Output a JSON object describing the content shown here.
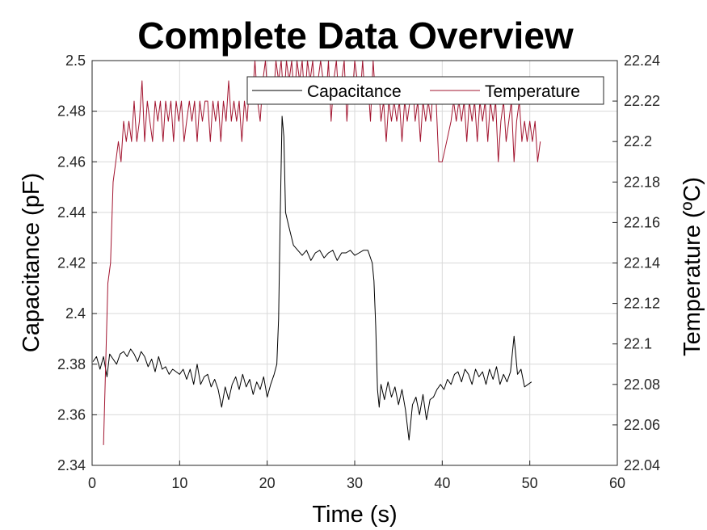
{
  "chart_data": {
    "type": "line",
    "title": "Complete Data Overview",
    "xlabel": "Time (s)",
    "ylabel_left": "Capacitance (pF)",
    "ylabel_right": "Temperature (ºC)",
    "xlim": [
      0,
      60
    ],
    "ylim_left": [
      2.34,
      2.5
    ],
    "ylim_right": [
      22.04,
      22.24
    ],
    "x_ticks": [
      "0",
      "10",
      "20",
      "30",
      "40",
      "50",
      "60"
    ],
    "y_left_ticks": [
      "2.34",
      "2.36",
      "2.38",
      "2.4",
      "2.42",
      "2.44",
      "2.46",
      "2.48",
      "2.5"
    ],
    "y_right_ticks": [
      "22.04",
      "22.06",
      "22.08",
      "22.1",
      "22.12",
      "22.14",
      "22.16",
      "22.18",
      "22.2",
      "22.22",
      "22.24"
    ],
    "grid": true,
    "legend": "top-right",
    "series": [
      {
        "name": "Capacitance",
        "axis": "left",
        "color": "#000000",
        "points": [
          [
            0.1,
            2.381
          ],
          [
            0.5,
            2.383
          ],
          [
            0.9,
            2.378
          ],
          [
            1.3,
            2.383
          ],
          [
            1.7,
            2.375
          ],
          [
            2.0,
            2.384
          ],
          [
            2.4,
            2.382
          ],
          [
            2.8,
            2.38
          ],
          [
            3.2,
            2.384
          ],
          [
            3.6,
            2.385
          ],
          [
            4.0,
            2.383
          ],
          [
            4.4,
            2.386
          ],
          [
            4.8,
            2.384
          ],
          [
            5.2,
            2.381
          ],
          [
            5.6,
            2.385
          ],
          [
            6.0,
            2.383
          ],
          [
            6.4,
            2.379
          ],
          [
            6.8,
            2.382
          ],
          [
            7.2,
            2.377
          ],
          [
            7.6,
            2.383
          ],
          [
            8.0,
            2.378
          ],
          [
            8.4,
            2.379
          ],
          [
            8.8,
            2.376
          ],
          [
            9.2,
            2.378
          ],
          [
            9.6,
            2.377
          ],
          [
            10.0,
            2.376
          ],
          [
            10.4,
            2.378
          ],
          [
            10.8,
            2.374
          ],
          [
            11.2,
            2.378
          ],
          [
            11.6,
            2.372
          ],
          [
            12.0,
            2.38
          ],
          [
            12.4,
            2.372
          ],
          [
            12.8,
            2.375
          ],
          [
            13.2,
            2.376
          ],
          [
            13.6,
            2.371
          ],
          [
            14.0,
            2.374
          ],
          [
            14.4,
            2.37
          ],
          [
            14.8,
            2.363
          ],
          [
            15.2,
            2.371
          ],
          [
            15.6,
            2.366
          ],
          [
            16.0,
            2.372
          ],
          [
            16.4,
            2.375
          ],
          [
            16.8,
            2.37
          ],
          [
            17.2,
            2.376
          ],
          [
            17.6,
            2.371
          ],
          [
            18.0,
            2.374
          ],
          [
            18.4,
            2.368
          ],
          [
            18.8,
            2.373
          ],
          [
            19.2,
            2.37
          ],
          [
            19.6,
            2.375
          ],
          [
            20.0,
            2.367
          ],
          [
            20.4,
            2.372
          ],
          [
            20.8,
            2.376
          ],
          [
            21.1,
            2.38
          ],
          [
            21.3,
            2.398
          ],
          [
            21.5,
            2.44
          ],
          [
            21.7,
            2.478
          ],
          [
            21.9,
            2.47
          ],
          [
            22.1,
            2.44
          ],
          [
            22.5,
            2.434
          ],
          [
            23.0,
            2.427
          ],
          [
            23.5,
            2.425
          ],
          [
            24.0,
            2.423
          ],
          [
            24.5,
            2.425
          ],
          [
            25.0,
            2.421
          ],
          [
            25.5,
            2.424
          ],
          [
            26.0,
            2.425
          ],
          [
            26.5,
            2.422
          ],
          [
            27.0,
            2.424
          ],
          [
            27.5,
            2.425
          ],
          [
            28.0,
            2.421
          ],
          [
            28.5,
            2.424
          ],
          [
            29.0,
            2.424
          ],
          [
            29.5,
            2.425
          ],
          [
            30.0,
            2.423
          ],
          [
            30.5,
            2.424
          ],
          [
            31.0,
            2.425
          ],
          [
            31.5,
            2.425
          ],
          [
            32.0,
            2.42
          ],
          [
            32.2,
            2.413
          ],
          [
            32.4,
            2.395
          ],
          [
            32.6,
            2.37
          ],
          [
            32.8,
            2.363
          ],
          [
            33.0,
            2.372
          ],
          [
            33.4,
            2.366
          ],
          [
            33.8,
            2.373
          ],
          [
            34.2,
            2.367
          ],
          [
            34.6,
            2.371
          ],
          [
            35.0,
            2.364
          ],
          [
            35.4,
            2.37
          ],
          [
            35.8,
            2.362
          ],
          [
            36.2,
            2.35
          ],
          [
            36.6,
            2.364
          ],
          [
            37.0,
            2.367
          ],
          [
            37.4,
            2.36
          ],
          [
            37.8,
            2.368
          ],
          [
            38.2,
            2.358
          ],
          [
            38.6,
            2.366
          ],
          [
            39.0,
            2.367
          ],
          [
            39.4,
            2.37
          ],
          [
            39.8,
            2.372
          ],
          [
            40.2,
            2.37
          ],
          [
            40.6,
            2.374
          ],
          [
            41.0,
            2.372
          ],
          [
            41.4,
            2.376
          ],
          [
            41.8,
            2.377
          ],
          [
            42.2,
            2.373
          ],
          [
            42.6,
            2.378
          ],
          [
            43.0,
            2.376
          ],
          [
            43.4,
            2.372
          ],
          [
            43.8,
            2.378
          ],
          [
            44.2,
            2.375
          ],
          [
            44.6,
            2.377
          ],
          [
            45.0,
            2.372
          ],
          [
            45.4,
            2.378
          ],
          [
            45.8,
            2.374
          ],
          [
            46.2,
            2.379
          ],
          [
            46.6,
            2.372
          ],
          [
            47.0,
            2.376
          ],
          [
            47.4,
            2.373
          ],
          [
            47.8,
            2.377
          ],
          [
            48.2,
            2.391
          ],
          [
            48.6,
            2.376
          ],
          [
            49.0,
            2.378
          ],
          [
            49.4,
            2.371
          ],
          [
            49.8,
            2.372
          ],
          [
            50.2,
            2.373
          ]
        ]
      },
      {
        "name": "Temperature",
        "axis": "right",
        "color": "#a2142f",
        "points": [
          [
            1.3,
            22.05
          ],
          [
            1.8,
            22.13
          ],
          [
            2.1,
            22.14
          ],
          [
            2.4,
            22.18
          ],
          [
            2.7,
            22.19
          ],
          [
            3.0,
            22.2
          ],
          [
            3.3,
            22.19
          ],
          [
            3.6,
            22.21
          ],
          [
            3.9,
            22.2
          ],
          [
            4.2,
            22.21
          ],
          [
            4.5,
            22.2
          ],
          [
            4.8,
            22.22
          ],
          [
            5.1,
            22.2
          ],
          [
            5.4,
            22.21
          ],
          [
            5.7,
            22.23
          ],
          [
            6.0,
            22.2
          ],
          [
            6.3,
            22.22
          ],
          [
            6.6,
            22.21
          ],
          [
            6.9,
            22.2
          ],
          [
            7.2,
            22.22
          ],
          [
            7.5,
            22.21
          ],
          [
            7.8,
            22.22
          ],
          [
            8.1,
            22.2
          ],
          [
            8.4,
            22.22
          ],
          [
            8.7,
            22.21
          ],
          [
            9.0,
            22.22
          ],
          [
            9.3,
            22.2
          ],
          [
            9.6,
            22.22
          ],
          [
            9.9,
            22.21
          ],
          [
            10.2,
            22.22
          ],
          [
            10.5,
            22.2
          ],
          [
            10.8,
            22.21
          ],
          [
            11.1,
            22.22
          ],
          [
            11.4,
            22.21
          ],
          [
            11.7,
            22.22
          ],
          [
            12.0,
            22.2
          ],
          [
            12.3,
            22.22
          ],
          [
            12.6,
            22.21
          ],
          [
            12.9,
            22.22
          ],
          [
            13.2,
            22.22
          ],
          [
            13.5,
            22.2
          ],
          [
            13.8,
            22.22
          ],
          [
            14.1,
            22.21
          ],
          [
            14.4,
            22.22
          ],
          [
            14.7,
            22.2
          ],
          [
            15.0,
            22.22
          ],
          [
            15.3,
            22.21
          ],
          [
            15.6,
            22.23
          ],
          [
            15.9,
            22.21
          ],
          [
            16.2,
            22.22
          ],
          [
            16.5,
            22.21
          ],
          [
            16.8,
            22.22
          ],
          [
            17.1,
            22.2
          ],
          [
            17.4,
            22.22
          ],
          [
            17.7,
            22.21
          ],
          [
            18.0,
            22.23
          ],
          [
            18.3,
            22.22
          ],
          [
            18.6,
            22.24
          ],
          [
            18.9,
            22.22
          ],
          [
            19.2,
            22.21
          ],
          [
            19.5,
            22.23
          ],
          [
            19.8,
            22.24
          ],
          [
            20.1,
            22.22
          ],
          [
            20.4,
            22.23
          ],
          [
            20.7,
            22.22
          ],
          [
            21.0,
            22.24
          ],
          [
            21.3,
            22.23
          ],
          [
            21.6,
            22.24
          ],
          [
            21.9,
            22.22
          ],
          [
            22.2,
            22.24
          ],
          [
            22.5,
            22.23
          ],
          [
            22.8,
            22.24
          ],
          [
            23.1,
            22.22
          ],
          [
            23.4,
            22.24
          ],
          [
            23.7,
            22.23
          ],
          [
            24.0,
            22.24
          ],
          [
            24.3,
            22.22
          ],
          [
            24.6,
            22.24
          ],
          [
            24.9,
            22.23
          ],
          [
            25.2,
            22.24
          ],
          [
            25.5,
            22.22
          ],
          [
            25.8,
            22.23
          ],
          [
            26.1,
            22.24
          ],
          [
            26.4,
            22.23
          ],
          [
            26.7,
            22.22
          ],
          [
            27.0,
            22.24
          ],
          [
            27.3,
            22.21
          ],
          [
            27.6,
            22.23
          ],
          [
            27.9,
            22.24
          ],
          [
            28.2,
            22.22
          ],
          [
            28.5,
            22.23
          ],
          [
            28.8,
            22.24
          ],
          [
            29.1,
            22.21
          ],
          [
            29.4,
            22.23
          ],
          [
            29.7,
            22.22
          ],
          [
            30.0,
            22.24
          ],
          [
            30.3,
            22.23
          ],
          [
            30.6,
            22.22
          ],
          [
            30.9,
            22.24
          ],
          [
            31.2,
            22.22
          ],
          [
            31.5,
            22.23
          ],
          [
            31.8,
            22.21
          ],
          [
            32.1,
            22.24
          ],
          [
            32.4,
            22.22
          ],
          [
            32.7,
            22.23
          ],
          [
            33.0,
            22.21
          ],
          [
            33.3,
            22.22
          ],
          [
            33.6,
            22.2
          ],
          [
            33.9,
            22.22
          ],
          [
            34.2,
            22.21
          ],
          [
            34.5,
            22.22
          ],
          [
            34.8,
            22.21
          ],
          [
            35.1,
            22.22
          ],
          [
            35.4,
            22.2
          ],
          [
            35.7,
            22.22
          ],
          [
            36.0,
            22.21
          ],
          [
            36.3,
            22.22
          ],
          [
            36.6,
            22.23
          ],
          [
            36.9,
            22.21
          ],
          [
            37.2,
            22.22
          ],
          [
            37.5,
            22.2
          ],
          [
            37.8,
            22.22
          ],
          [
            38.1,
            22.21
          ],
          [
            38.4,
            22.22
          ],
          [
            38.7,
            22.21
          ],
          [
            39.0,
            22.23
          ],
          [
            39.3,
            22.22
          ],
          [
            39.6,
            22.19
          ],
          [
            40.0,
            22.19
          ],
          [
            40.5,
            22.2
          ],
          [
            41.0,
            22.21
          ],
          [
            41.3,
            22.22
          ],
          [
            41.6,
            22.21
          ],
          [
            41.9,
            22.22
          ],
          [
            42.2,
            22.21
          ],
          [
            42.5,
            22.22
          ],
          [
            42.8,
            22.2
          ],
          [
            43.1,
            22.22
          ],
          [
            43.4,
            22.21
          ],
          [
            43.7,
            22.22
          ],
          [
            44.0,
            22.2
          ],
          [
            44.3,
            22.22
          ],
          [
            44.6,
            22.21
          ],
          [
            44.9,
            22.22
          ],
          [
            45.2,
            22.2
          ],
          [
            45.5,
            22.22
          ],
          [
            45.8,
            22.21
          ],
          [
            46.1,
            22.22
          ],
          [
            46.4,
            22.19
          ],
          [
            46.7,
            22.21
          ],
          [
            47.0,
            22.22
          ],
          [
            47.3,
            22.2
          ],
          [
            47.6,
            22.21
          ],
          [
            47.9,
            22.22
          ],
          [
            48.2,
            22.19
          ],
          [
            48.5,
            22.21
          ],
          [
            48.8,
            22.22
          ],
          [
            49.1,
            22.2
          ],
          [
            49.4,
            22.21
          ],
          [
            49.7,
            22.2
          ],
          [
            50.0,
            22.21
          ],
          [
            50.3,
            22.2
          ],
          [
            50.6,
            22.21
          ],
          [
            50.9,
            22.19
          ],
          [
            51.2,
            22.2
          ]
        ]
      }
    ]
  }
}
